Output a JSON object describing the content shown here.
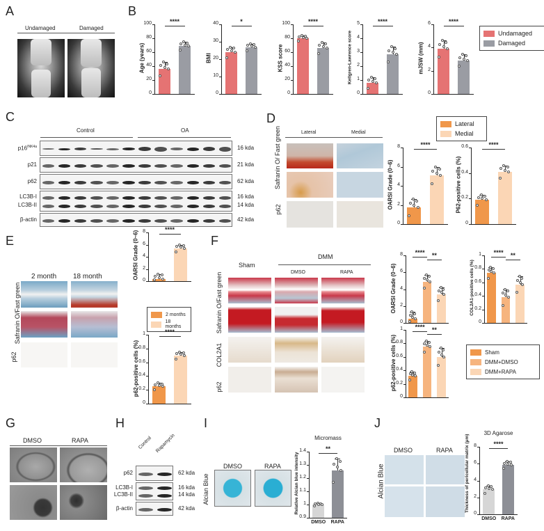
{
  "colors": {
    "undamaged": "#e57373",
    "damaged": "#9a9ca3",
    "lateral": "#f0974a",
    "medial": "#fbd6b5",
    "sham": "#f0974a",
    "dmm_dmso": "#f6b47e",
    "dmm_rapa": "#fbd6b5",
    "dmso_gray": "#d6d6d6",
    "rapa_gray": "#8d8f96"
  },
  "panels": {
    "A": {
      "letter": "A",
      "labels": [
        "Undamaged",
        "Damaged"
      ]
    },
    "B": {
      "letter": "B",
      "legend": [
        "Undamaged",
        "Damaged"
      ]
    },
    "C": {
      "letter": "C",
      "groups": [
        "Control",
        "OA"
      ],
      "rows": [
        {
          "label": "p16",
          "sup": "INK4a",
          "size": "16 kda"
        },
        {
          "label": "p21",
          "size": "21 kda"
        },
        {
          "label": "p62",
          "size": "62 kda"
        },
        {
          "label": "LC3B-I",
          "size": "16 kda"
        },
        {
          "label": "LC3B-II",
          "size": "14 kda"
        },
        {
          "label": "β-actin",
          "size": "42 kda"
        }
      ]
    },
    "D": {
      "letter": "D",
      "columns": [
        "Lateral",
        "Medial"
      ],
      "row_labels": [
        "Safranin O/ Fast green",
        "p62"
      ],
      "legend": [
        "Lateral",
        "Medial"
      ]
    },
    "E": {
      "letter": "E",
      "columns": [
        "2 month",
        "18 month"
      ],
      "row_labels": [
        "Safranin O/Fast green",
        "p62"
      ],
      "legend": [
        "2 months",
        "18 months"
      ]
    },
    "F": {
      "letter": "F",
      "columns": [
        "Sham",
        "DMSO",
        "RAPA"
      ],
      "group_label": "DMM",
      "row_labels": [
        "Safranin O/Fast green",
        "COL2A1",
        "p62"
      ],
      "legend": [
        "Sham",
        "DMM+DMSO",
        "DMM+RAPA"
      ]
    },
    "G": {
      "letter": "G",
      "columns": [
        "DMSO",
        "RAPA"
      ]
    },
    "H": {
      "letter": "H",
      "columns": [
        "Control",
        "Rapamycin"
      ],
      "rows": [
        {
          "label": "p62",
          "size": "62 kda"
        },
        {
          "label": "LC3B-I",
          "size": "16 kda"
        },
        {
          "label": "LC3B-II",
          "size": "14 kda"
        },
        {
          "label": "β-actin",
          "size": "42 kda"
        }
      ]
    },
    "I": {
      "letter": "I",
      "columns": [
        "DMSO",
        "RAPA"
      ],
      "row_label": "Alcian Blue"
    },
    "J": {
      "letter": "J",
      "columns": [
        "DMSO",
        "RAPA"
      ],
      "row_label": "Alcian Blue"
    }
  },
  "chart_data": [
    {
      "id": "B1",
      "type": "bar",
      "categories": [
        "Undamaged",
        "Damaged"
      ],
      "values": [
        36,
        69
      ],
      "errors": [
        10,
        6
      ],
      "ylabel": "Age (years)",
      "ylim": [
        0,
        100
      ],
      "yticks": [
        0,
        20,
        40,
        60,
        80,
        100
      ],
      "significance": "****"
    },
    {
      "id": "B2",
      "type": "bar",
      "categories": [
        "Undamaged",
        "Damaged"
      ],
      "values": [
        24,
        27
      ],
      "errors": [
        3,
        2
      ],
      "ylabel": "BMI",
      "ylim": [
        0,
        40
      ],
      "yticks": [
        0,
        10,
        20,
        30,
        40
      ],
      "significance": "*"
    },
    {
      "id": "B3",
      "type": "bar",
      "categories": [
        "Undamaged",
        "Damaged"
      ],
      "values": [
        80,
        66
      ],
      "errors": [
        4,
        8
      ],
      "ylabel": "KSS score",
      "ylim": [
        0,
        100
      ],
      "yticks": [
        0,
        20,
        40,
        60,
        80,
        100
      ],
      "significance": "****"
    },
    {
      "id": "B4",
      "type": "bar",
      "categories": [
        "Undamaged",
        "Damaged"
      ],
      "values": [
        0.8,
        2.85
      ],
      "errors": [
        0.4,
        0.55
      ],
      "ylabel": "Kellgren-Lawrence score",
      "ylim": [
        0,
        5
      ],
      "yticks": [
        0,
        1,
        2,
        3,
        4,
        5
      ],
      "significance": "****"
    },
    {
      "id": "B5",
      "type": "bar",
      "categories": [
        "Undamaged",
        "Damaged"
      ],
      "values": [
        3.9,
        2.9
      ],
      "errors": [
        0.7,
        0.5
      ],
      "ylabel": "mJSW (mm)",
      "ylim": [
        0,
        6
      ],
      "yticks": [
        0,
        2,
        4,
        6
      ],
      "significance": "****"
    },
    {
      "id": "D1",
      "type": "bar",
      "categories": [
        "Lateral",
        "Medial"
      ],
      "values": [
        1.75,
        5.1
      ],
      "errors": [
        0.9,
        0.9
      ],
      "ylabel": "OARSI Grade (0~6)",
      "ylim": [
        0,
        8
      ],
      "yticks": [
        0,
        2,
        4,
        6,
        8
      ],
      "significance": "****"
    },
    {
      "id": "D2",
      "type": "bar",
      "categories": [
        "Lateral",
        "Medial"
      ],
      "values": [
        0.19,
        0.41
      ],
      "errors": [
        0.04,
        0.05
      ],
      "ylabel": "P62-positive cells (%)",
      "ylim": [
        0,
        0.6
      ],
      "yticks": [
        0.0,
        0.2,
        0.4,
        0.6
      ],
      "significance": "****"
    },
    {
      "id": "E1",
      "type": "bar",
      "categories": [
        "2 months",
        "18 months"
      ],
      "values": [
        0.4,
        5.4
      ],
      "errors": [
        0.8,
        0.6
      ],
      "ylabel": "OARSI Grade (0~6)",
      "ylim": [
        0,
        8
      ],
      "yticks": [
        0,
        2,
        4,
        6,
        8
      ],
      "significance": "****"
    },
    {
      "id": "E2",
      "type": "bar",
      "categories": [
        "2 months",
        "18 months"
      ],
      "values": [
        0.25,
        0.7
      ],
      "errors": [
        0.05,
        0.05
      ],
      "ylabel": "p62-positive cells (%)",
      "ylim": [
        0,
        1.0
      ],
      "yticks": [
        0.0,
        0.2,
        0.4,
        0.6,
        0.8,
        1.0
      ],
      "significance": "****"
    },
    {
      "id": "F1",
      "type": "bar",
      "categories": [
        "Sham",
        "DMM+DMSO",
        "DMM+RAPA"
      ],
      "values": [
        0.5,
        4.9,
        3.4
      ],
      "errors": [
        0.8,
        0.8,
        0.8
      ],
      "ylabel": "OARSI Grade (0~6)",
      "ylim": [
        0,
        8
      ],
      "yticks": [
        0,
        2,
        4,
        6,
        8
      ],
      "significance": [
        "****",
        "**"
      ]
    },
    {
      "id": "F2",
      "type": "bar",
      "categories": [
        "Sham",
        "DMM+DMSO",
        "DMM+RAPA"
      ],
      "values": [
        0.74,
        0.38,
        0.57
      ],
      "errors": [
        0.08,
        0.12,
        0.12
      ],
      "ylabel": "COL2A1-positive cells (%)",
      "ylim": [
        0,
        1.0
      ],
      "yticks": [
        0.0,
        0.2,
        0.4,
        0.6,
        0.8,
        1.0
      ],
      "significance": [
        "****",
        "**"
      ]
    },
    {
      "id": "F3",
      "type": "bar",
      "categories": [
        "Sham",
        "DMM+DMSO",
        "DMM+RAPA"
      ],
      "values": [
        0.32,
        0.75,
        0.6
      ],
      "errors": [
        0.06,
        0.08,
        0.13
      ],
      "ylabel": "p62-positive cells (%)",
      "ylim": [
        0,
        1.0
      ],
      "yticks": [
        0.0,
        0.2,
        0.4,
        0.6,
        0.8,
        1.0
      ],
      "significance": [
        "****",
        "**"
      ]
    },
    {
      "id": "I1",
      "type": "bar",
      "title": "Micromass",
      "categories": [
        "DMSO",
        "RAPA"
      ],
      "values": [
        1.0,
        1.26
      ],
      "errors": [
        0.0,
        0.09
      ],
      "ylabel": "Relative Alcian blue intensity",
      "ylim": [
        0.9,
        1.4
      ],
      "yticks": [
        0.9,
        1.0,
        1.1,
        1.2,
        1.3,
        1.4
      ],
      "significance": "**"
    },
    {
      "id": "J1",
      "type": "bar",
      "title": "3D Agarose",
      "categories": [
        "DMSO",
        "RAPA"
      ],
      "values": [
        2.95,
        5.85
      ],
      "errors": [
        0.45,
        0.4
      ],
      "ylabel": "Thickness of pericellular matrix (μm)",
      "ylim": [
        0,
        8
      ],
      "yticks": [
        0,
        2,
        4,
        6,
        8
      ],
      "significance": "****"
    }
  ]
}
